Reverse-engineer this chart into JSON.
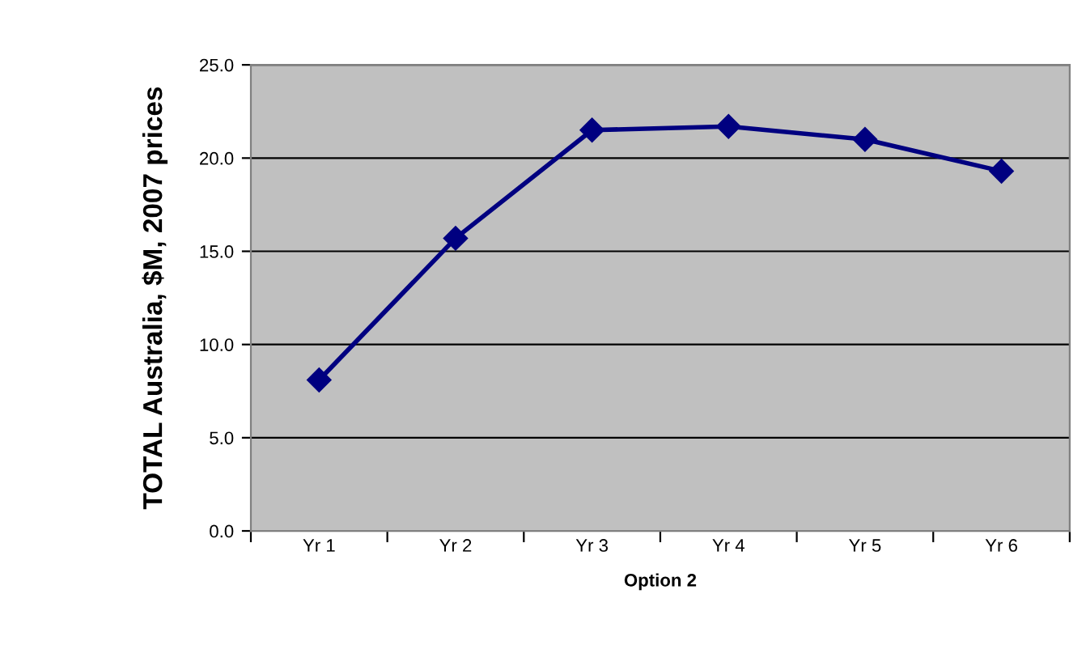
{
  "chart_data": {
    "type": "line",
    "xlabel": "Option 2",
    "ylabel": "TOTAL Australia, $M, 2007 prices",
    "categories": [
      "Yr 1",
      "Yr 2",
      "Yr 3",
      "Yr 4",
      "Yr 5",
      "Yr 6"
    ],
    "series": [
      {
        "color": "#000080",
        "values": [
          8.1,
          15.7,
          21.5,
          21.7,
          21.0,
          19.3
        ]
      }
    ],
    "ylim": [
      0,
      25
    ],
    "yticks": [
      {
        "value": 0,
        "label": "0.0"
      },
      {
        "value": 5,
        "label": "5.0"
      },
      {
        "value": 10,
        "label": "10.0"
      },
      {
        "value": 15,
        "label": "15.0"
      },
      {
        "value": 20,
        "label": "20.0"
      },
      {
        "value": 25,
        "label": "25.0"
      }
    ],
    "grid": "y",
    "marker": "diamond",
    "line_style": "solid"
  }
}
